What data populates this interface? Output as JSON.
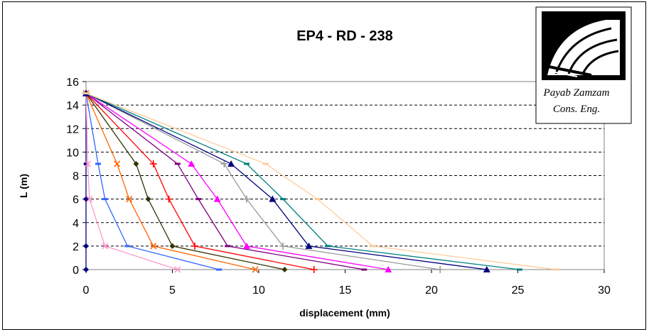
{
  "chart_data": {
    "type": "line",
    "title": "EP4 - RD - 238",
    "xlabel": "displacement (mm)",
    "ylabel": "L (m)",
    "xlim": [
      0,
      30
    ],
    "ylim": [
      0,
      16
    ],
    "xticks": [
      "0",
      "5",
      "10",
      "15",
      "20",
      "25",
      "30"
    ],
    "yticks": [
      "0",
      "2",
      "4",
      "6",
      "8",
      "10",
      "12",
      "14",
      "16"
    ],
    "grid": "horizontal dashed",
    "legend": "none",
    "series": [
      {
        "color": "#000080",
        "marker": "diamond",
        "points": [
          [
            0,
            0
          ],
          [
            0,
            2
          ],
          [
            0,
            6
          ],
          [
            0,
            9
          ],
          [
            0,
            15
          ]
        ]
      },
      {
        "color": "#FF99CC",
        "marker": "x",
        "points": [
          [
            5.3,
            0
          ],
          [
            1.1,
            2
          ],
          [
            0.2,
            6
          ],
          [
            0.1,
            9
          ],
          [
            0,
            15
          ]
        ]
      },
      {
        "color": "#3366FF",
        "marker": "dash",
        "points": [
          [
            7.7,
            0
          ],
          [
            2.4,
            2
          ],
          [
            1.1,
            6
          ],
          [
            0.7,
            9
          ],
          [
            0,
            15
          ]
        ]
      },
      {
        "color": "#FF6600",
        "marker": "x",
        "points": [
          [
            9.8,
            0
          ],
          [
            3.9,
            2
          ],
          [
            2.5,
            6
          ],
          [
            1.8,
            9
          ],
          [
            0,
            15
          ]
        ]
      },
      {
        "color": "#333300",
        "marker": "diamond",
        "points": [
          [
            11.5,
            0
          ],
          [
            5.0,
            2
          ],
          [
            3.6,
            6
          ],
          [
            2.9,
            9
          ],
          [
            0,
            15
          ]
        ]
      },
      {
        "color": "#FF0000",
        "marker": "plus",
        "points": [
          [
            13.2,
            0
          ],
          [
            6.3,
            2
          ],
          [
            4.8,
            6
          ],
          [
            3.9,
            9
          ],
          [
            0,
            15
          ]
        ]
      },
      {
        "color": "#800080",
        "marker": "dash",
        "points": [
          [
            16.1,
            0
          ],
          [
            8.2,
            2
          ],
          [
            6.5,
            6
          ],
          [
            5.3,
            9
          ],
          [
            0,
            15
          ]
        ]
      },
      {
        "color": "#FF00FF",
        "marker": "triangle",
        "points": [
          [
            17.5,
            0
          ],
          [
            9.3,
            2
          ],
          [
            7.6,
            6
          ],
          [
            6.1,
            9
          ],
          [
            0,
            15
          ]
        ]
      },
      {
        "color": "#999999",
        "marker": "plus",
        "points": [
          [
            20.5,
            0
          ],
          [
            11.4,
            2
          ],
          [
            9.3,
            6
          ],
          [
            8.0,
            9
          ],
          [
            0,
            15
          ]
        ]
      },
      {
        "color": "#000080",
        "marker": "triangle",
        "points": [
          [
            23.2,
            0
          ],
          [
            12.9,
            2
          ],
          [
            10.8,
            6
          ],
          [
            8.4,
            9
          ],
          [
            0,
            15
          ]
        ]
      },
      {
        "color": "#008080",
        "marker": "dash",
        "points": [
          [
            25.1,
            0
          ],
          [
            14.0,
            2
          ],
          [
            11.4,
            6
          ],
          [
            9.3,
            9
          ],
          [
            0,
            15
          ]
        ]
      },
      {
        "color": "#FFCC99",
        "marker": "dash",
        "points": [
          [
            27.2,
            0
          ],
          [
            16.6,
            2
          ],
          [
            13.4,
            6
          ],
          [
            10.4,
            9
          ],
          [
            0,
            15
          ]
        ]
      }
    ]
  },
  "logo": {
    "icon": "tunnel-logo-icon",
    "line1": "Payab Zamzam",
    "line2": "Cons. Eng."
  }
}
